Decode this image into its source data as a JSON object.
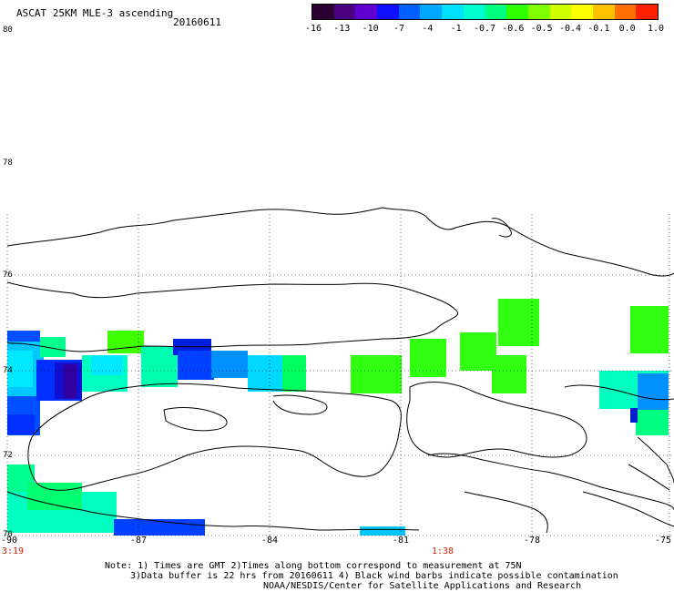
{
  "header": {
    "title": "ASCAT 25KM MLE-3 ascending",
    "date": "20160611"
  },
  "colorbar": {
    "colors": [
      "#2a0030",
      "#4a0080",
      "#6000d0",
      "#1010ff",
      "#0060ff",
      "#00a8ff",
      "#00e0ff",
      "#00ffd0",
      "#00ff80",
      "#30ff00",
      "#80ff00",
      "#d0ff00",
      "#ffff00",
      "#ffc000",
      "#ff7000",
      "#ff2000"
    ],
    "labels": [
      "-16",
      "-13",
      "-10",
      "-7",
      "-4",
      "-1",
      "-0.7",
      "-0.6",
      "-0.5",
      "-0.4",
      "-0.1",
      "0.0",
      "1.0"
    ]
  },
  "map": {
    "y_axis_labels": [
      "80",
      "78",
      "76",
      "74",
      "72",
      "70"
    ],
    "x_axis_labels": [
      "-90",
      "-87",
      "-84",
      "-81",
      "-78",
      "-75"
    ],
    "time_labels": [
      "3:19",
      "1:38"
    ]
  },
  "notes": {
    "line1": "Note: 1) Times are GMT 2)Times along bottom correspond to measurement at 75N",
    "line2": "3)Data buffer is 22 hrs from 20160611 4) Black wind barbs indicate possible contamination",
    "line3": "NOAA/NESDIS/Center for Satellite Applications and Research"
  }
}
